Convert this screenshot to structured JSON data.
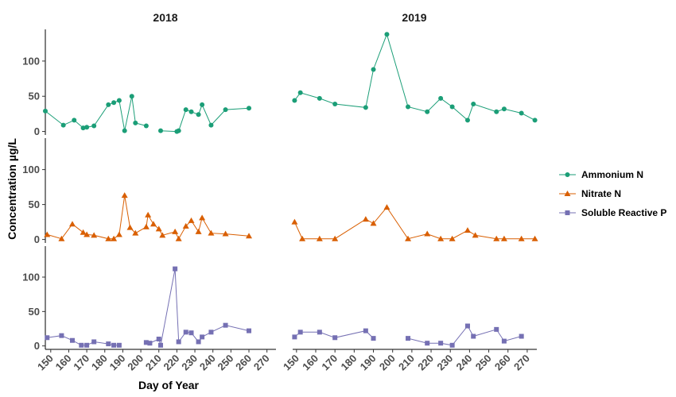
{
  "chart_data": {
    "type": "line",
    "xlabel": "Day of Year",
    "ylabel": "Concentration µg/L",
    "facet_columns": [
      "2018",
      "2019"
    ],
    "x_ticks": [
      150,
      160,
      170,
      180,
      190,
      200,
      210,
      220,
      230,
      240,
      250,
      260,
      270
    ],
    "y_ticks": [
      0,
      50,
      100
    ],
    "ylim": [
      -5,
      145
    ],
    "xlim_2018": [
      147,
      275
    ],
    "xlim_2019": [
      148,
      275
    ],
    "legend_position": "right",
    "series": [
      {
        "name": "Ammonium N",
        "color": "#1b9e77",
        "marker": "circle",
        "segments_2018": [
          [
            [
              147,
              29
            ],
            [
              157,
              9
            ],
            [
              163,
              16
            ],
            [
              168,
              5
            ],
            [
              170,
              6
            ],
            [
              174,
              8
            ],
            [
              182,
              38
            ],
            [
              185,
              41
            ],
            [
              188,
              44
            ],
            [
              191,
              1
            ],
            [
              195,
              50
            ],
            [
              197,
              12
            ],
            [
              203,
              8
            ]
          ],
          [
            [
              211,
              1
            ],
            [
              220,
              0
            ],
            [
              221,
              1
            ],
            [
              225,
              31
            ],
            [
              228,
              28
            ],
            [
              232,
              24
            ],
            [
              234,
              38
            ],
            [
              239,
              9
            ],
            [
              247,
              31
            ],
            [
              260,
              33
            ]
          ]
        ],
        "segments_2019": [
          [
            [
              149,
              44
            ],
            [
              152,
              55
            ],
            [
              162,
              47
            ],
            [
              170,
              39
            ],
            [
              186,
              34
            ],
            [
              190,
              88
            ],
            [
              197,
              138
            ],
            [
              208,
              35
            ],
            [
              218,
              28
            ],
            [
              225,
              47
            ],
            [
              231,
              35
            ],
            [
              239,
              16
            ],
            [
              242,
              39
            ],
            [
              254,
              28
            ],
            [
              258,
              32
            ],
            [
              267,
              26
            ],
            [
              274,
              16
            ]
          ]
        ]
      },
      {
        "name": "Nitrate N",
        "color": "#d95f02",
        "marker": "triangle",
        "segments_2018": [
          [
            [
              148,
              7
            ],
            [
              156,
              1
            ],
            [
              162,
              22
            ],
            [
              168,
              10
            ],
            [
              170,
              7
            ],
            [
              174,
              6
            ],
            [
              182,
              1
            ],
            [
              185,
              1
            ],
            [
              188,
              7
            ],
            [
              191,
              63
            ],
            [
              194,
              17
            ],
            [
              197,
              9
            ],
            [
              203,
              18
            ],
            [
              204,
              35
            ],
            [
              207,
              22
            ],
            [
              210,
              15
            ],
            [
              212,
              6
            ],
            [
              219,
              11
            ],
            [
              221,
              1
            ],
            [
              225,
              19
            ],
            [
              228,
              27
            ],
            [
              232,
              11
            ],
            [
              234,
              31
            ],
            [
              239,
              9
            ],
            [
              247,
              8
            ],
            [
              260,
              5
            ]
          ]
        ],
        "segments_2019": [
          [
            [
              149,
              25
            ],
            [
              153,
              1
            ],
            [
              162,
              1
            ],
            [
              170,
              1
            ],
            [
              186,
              29
            ],
            [
              190,
              23
            ],
            [
              197,
              46
            ],
            [
              208,
              1
            ],
            [
              218,
              8
            ],
            [
              225,
              1
            ],
            [
              231,
              1
            ],
            [
              239,
              13
            ],
            [
              243,
              6
            ],
            [
              254,
              1
            ],
            [
              258,
              1
            ],
            [
              267,
              1
            ],
            [
              274,
              1
            ]
          ]
        ]
      },
      {
        "name": "Soluble Reactive P",
        "color": "#7570b3",
        "marker": "square",
        "segments_2018": [
          [
            [
              148,
              12
            ],
            [
              156,
              15
            ],
            [
              162,
              8
            ],
            [
              167,
              1
            ],
            [
              170,
              1
            ],
            [
              174,
              6
            ],
            [
              182,
              3
            ],
            [
              185,
              1
            ],
            [
              188,
              1
            ]
          ],
          [
            [
              203,
              5
            ],
            [
              205,
              4
            ],
            [
              210,
              10
            ],
            [
              211,
              1
            ],
            [
              219,
              112
            ],
            [
              221,
              6
            ],
            [
              225,
              20
            ],
            [
              228,
              19
            ],
            [
              232,
              6
            ],
            [
              234,
              13
            ],
            [
              239,
              20
            ],
            [
              247,
              30
            ],
            [
              260,
              22
            ]
          ]
        ],
        "segments_2019": [
          [
            [
              149,
              13
            ],
            [
              152,
              20
            ],
            [
              162,
              20
            ],
            [
              170,
              12
            ],
            [
              186,
              22
            ],
            [
              190,
              11
            ]
          ],
          [
            [
              208,
              11
            ],
            [
              218,
              4
            ],
            [
              225,
              4
            ],
            [
              231,
              1
            ],
            [
              239,
              29
            ],
            [
              242,
              14
            ],
            [
              254,
              24
            ],
            [
              258,
              7
            ],
            [
              267,
              14
            ]
          ]
        ]
      }
    ]
  }
}
